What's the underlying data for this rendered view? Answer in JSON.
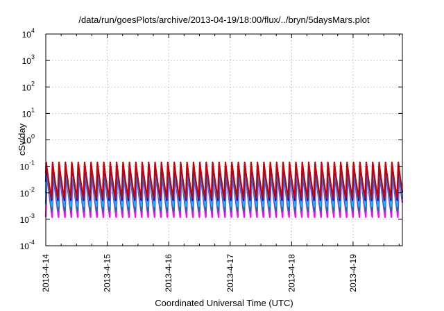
{
  "chart_data": {
    "type": "line",
    "title": "/data/run/goesPlots/archive/2013-04-19/18:00/flux/../bryn/5daysMars.plot",
    "xlabel": "Coordinated Universal Time (UTC)",
    "ylabel": "cSv/day",
    "y_scale": "log",
    "ylim": [
      0.0001,
      10000
    ],
    "y_ticks": [
      {
        "base": "10",
        "exp": "-4",
        "value": 0.0001
      },
      {
        "base": "10",
        "exp": "-3",
        "value": 0.001
      },
      {
        "base": "10",
        "exp": "-2",
        "value": 0.01
      },
      {
        "base": "10",
        "exp": "-1",
        "value": 0.1
      },
      {
        "base": "10",
        "exp": "0",
        "value": 1
      },
      {
        "base": "10",
        "exp": "1",
        "value": 10
      },
      {
        "base": "10",
        "exp": "2",
        "value": 100
      },
      {
        "base": "10",
        "exp": "3",
        "value": 1000
      },
      {
        "base": "10",
        "exp": "4",
        "value": 10000
      }
    ],
    "x_ticks": [
      "2013-4-14",
      "2013-4-15",
      "2013-4-16",
      "2013-4-17",
      "2013-4-18",
      "2013-4-19"
    ],
    "xlim": [
      "2013-04-14T00:00",
      "2013-04-19T19:15"
    ],
    "grid": true,
    "legend": "none",
    "oscillation_period_hours": 2.5,
    "series": [
      {
        "color": "#ff00ff",
        "peak": 0.06,
        "trough": 0.0012
      },
      {
        "color": "#008080",
        "peak": 0.08,
        "trough": 0.002
      },
      {
        "color": "#00bfff",
        "peak": 0.1,
        "trough": 0.003
      },
      {
        "color": "#0000ff",
        "peak": 0.13,
        "trough": 0.005
      },
      {
        "color": "#cc0000",
        "peak": 0.15,
        "trough": 0.006
      }
    ]
  }
}
